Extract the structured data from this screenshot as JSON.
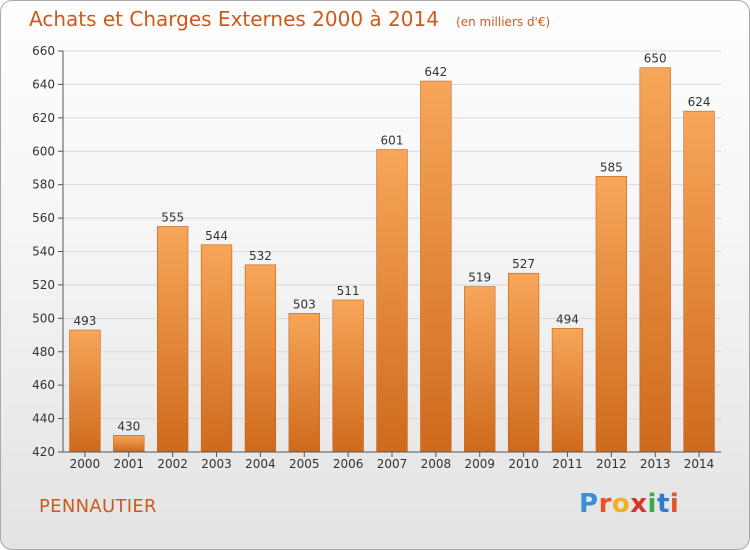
{
  "header": {
    "title": "Achats et Charges Externes 2000 à 2014",
    "unit": "(en milliers d'€)"
  },
  "footer": {
    "location": "PENNAUTIER",
    "brand": "Proxiti"
  },
  "colors": {
    "bar_light": "#f7a65a",
    "bar_dark": "#cf6a1c",
    "accent": "#cc5a1e",
    "grid": "#d8d8d8",
    "axis_text": "#333333"
  },
  "chart_data": {
    "type": "bar",
    "title": "Achats et Charges Externes 2000 à 2014",
    "subtitle": "(en milliers d'€)",
    "categories": [
      "2000",
      "2001",
      "2002",
      "2003",
      "2004",
      "2005",
      "2006",
      "2007",
      "2008",
      "2009",
      "2010",
      "2011",
      "2012",
      "2013",
      "2014"
    ],
    "values": [
      493,
      430,
      555,
      544,
      532,
      503,
      511,
      601,
      642,
      519,
      527,
      494,
      585,
      650,
      624
    ],
    "ylim": [
      420,
      660
    ],
    "yticks": [
      420,
      440,
      460,
      480,
      500,
      520,
      540,
      560,
      580,
      600,
      620,
      640,
      660
    ],
    "xlabel": "",
    "ylabel": "",
    "grid": true,
    "legend": "none"
  }
}
